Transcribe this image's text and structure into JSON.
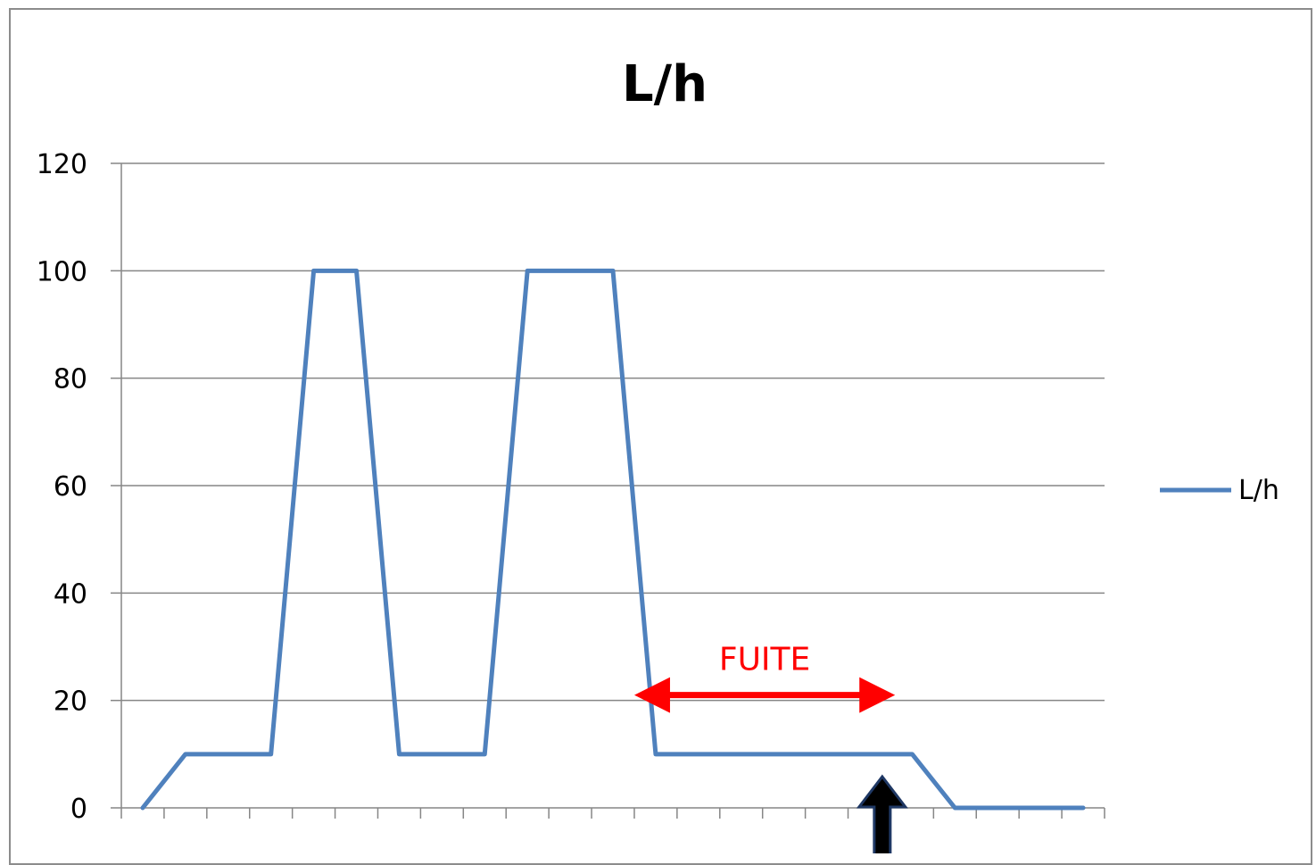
{
  "chart_data": {
    "type": "line",
    "title": "L/h",
    "xlabel": "",
    "ylabel": "",
    "ylim": [
      0,
      120
    ],
    "yticks": [
      0,
      20,
      40,
      60,
      80,
      100,
      120
    ],
    "grid": "horizontal",
    "legend_position": "right",
    "x": [
      1,
      2,
      3,
      4,
      5,
      6,
      7,
      8,
      9,
      10,
      11,
      12,
      13,
      14,
      15,
      16,
      17,
      18,
      19,
      20,
      21,
      22,
      23
    ],
    "series": [
      {
        "name": "L/h",
        "color": "#4f81bd",
        "values": [
          0,
          10,
          10,
          10,
          100,
          100,
          10,
          10,
          10,
          100,
          100,
          100,
          10,
          10,
          10,
          10,
          10,
          10,
          10,
          0,
          0,
          0,
          0
        ]
      }
    ],
    "annotations": [
      {
        "type": "double-arrow",
        "label": "FUITE",
        "color": "#ff0000",
        "x_from": 12.5,
        "x_to": 18.6,
        "y": 21
      },
      {
        "type": "up-arrow",
        "color": "#000000",
        "x": 18.3
      }
    ]
  }
}
